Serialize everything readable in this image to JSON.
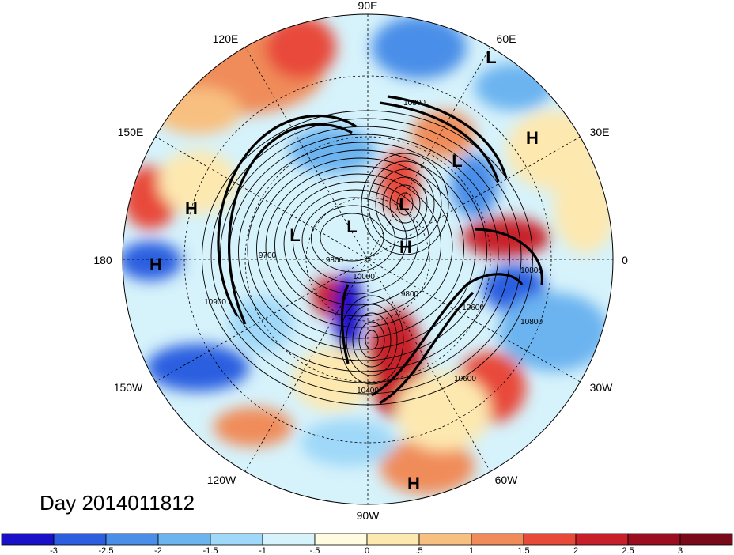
{
  "map": {
    "projection": "polar-stereographic-north",
    "day_label": "Day 2014011812",
    "longitude_labels": {
      "lon_90e": "90E",
      "lon_60e": "60E",
      "lon_30e": "30E",
      "lon_0": "0",
      "lon_30w": "30W",
      "lon_60w": "60W",
      "lon_90w": "90W",
      "lon_120w": "120W",
      "lon_150w": "150W",
      "lon_180": "180",
      "lon_150e": "150E",
      "lon_120e": "120E"
    },
    "pressure_centers": [
      {
        "id": "l1",
        "type": "L"
      },
      {
        "id": "l2",
        "type": "L"
      },
      {
        "id": "l3",
        "type": "L"
      },
      {
        "id": "l4",
        "type": "L"
      },
      {
        "id": "l5",
        "type": "L"
      },
      {
        "id": "h1",
        "type": "H"
      },
      {
        "id": "h2",
        "type": "H"
      },
      {
        "id": "h3",
        "type": "H"
      },
      {
        "id": "h4",
        "type": "H"
      },
      {
        "id": "h5",
        "type": "H"
      }
    ],
    "contour_labels": {
      "c1": "10800",
      "c2": "9700",
      "c3": "9800",
      "c4": "9800",
      "c5": "10600",
      "c6": "10800",
      "c7": "10900",
      "c8": "10600",
      "c9": "10400",
      "c10": "10000",
      "c11": "10800"
    }
  },
  "colorbar": {
    "tick_labels": [
      "-3",
      "-2.5",
      "-2",
      "-1.5",
      "-1",
      "-.5",
      "0",
      ".5",
      "1",
      "1.5",
      "2",
      "2.5",
      "3"
    ],
    "colors": [
      "#1a10c8",
      "#2b5fe0",
      "#4a8ee8",
      "#6cb4f0",
      "#9fd8f8",
      "#d6f2fb",
      "#fffbe0",
      "#fde8b0",
      "#f8c080",
      "#f08c5a",
      "#e84a3a",
      "#c8202a",
      "#9a0e20"
    ]
  }
}
